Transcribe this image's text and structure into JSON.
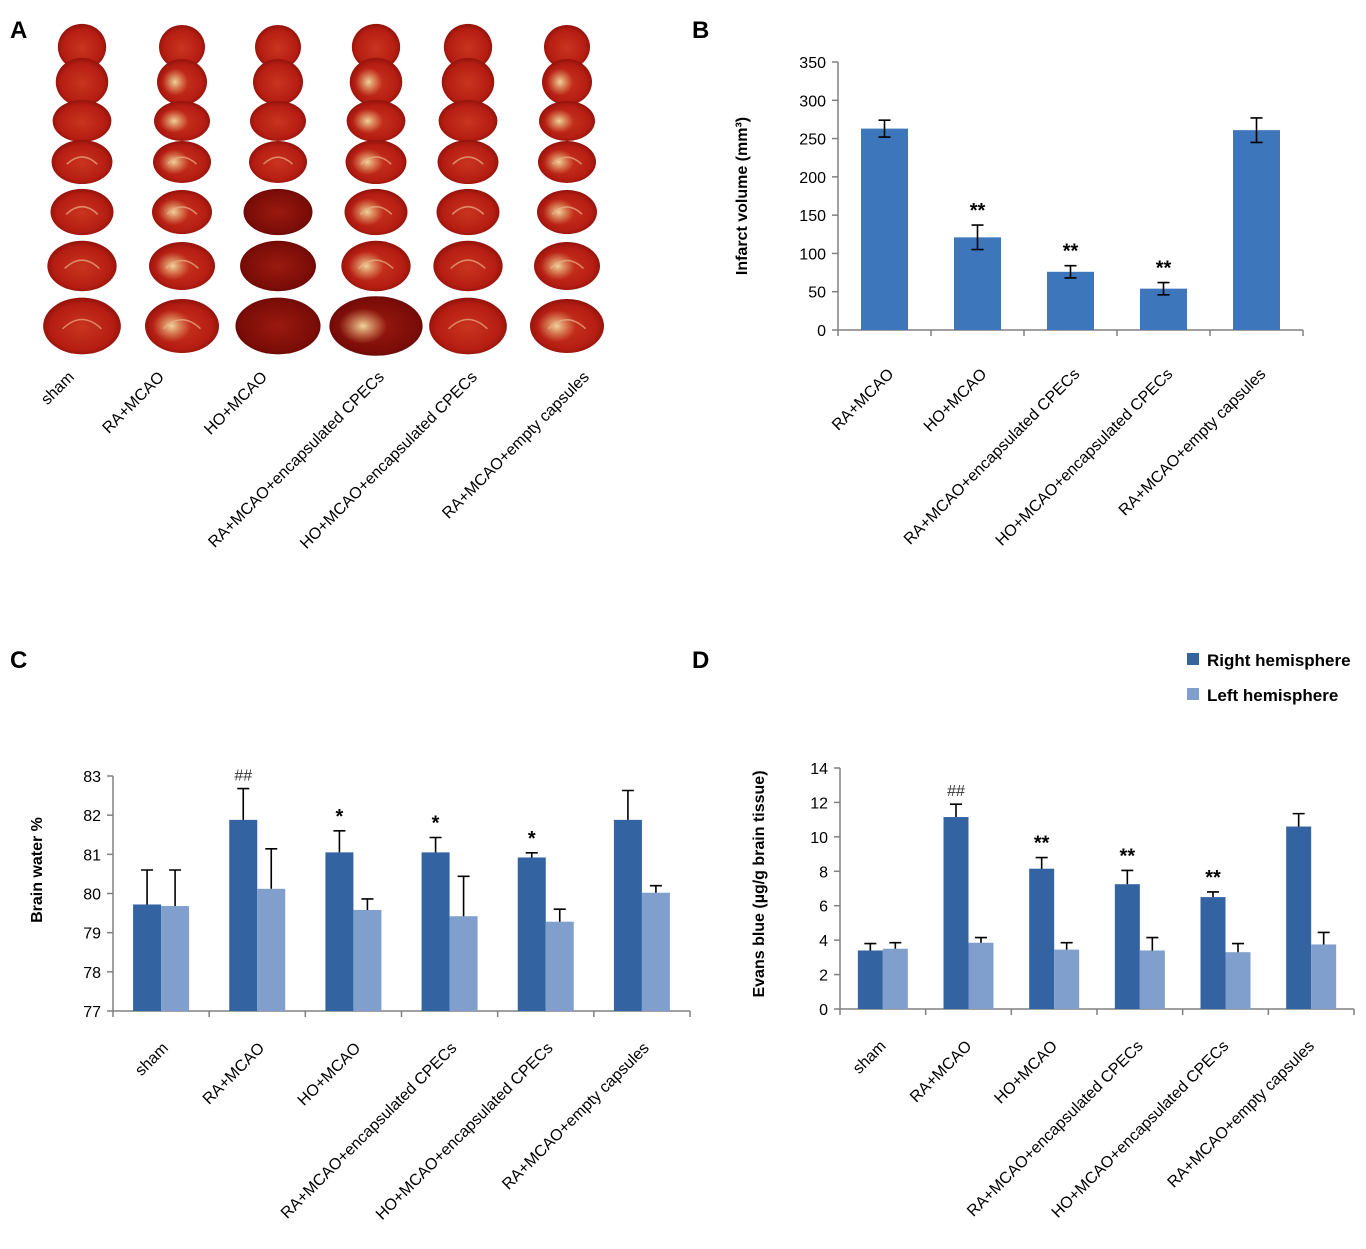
{
  "panels": {
    "a": {
      "letter": "A"
    },
    "b": {
      "letter": "B"
    },
    "c": {
      "letter": "C"
    },
    "d": {
      "letter": "D"
    }
  },
  "slice_labels": [
    "sham",
    "RA+MCAO",
    "HO+MCAO",
    "RA+MCAO+encapsulated CPECs",
    "HO+MCAO+encapsulated CPECs",
    "RA+MCAO+empty capsules"
  ],
  "colors": {
    "panel_b_bar": "#3d76bb",
    "right_hemisphere": "#3463a1",
    "left_hemisphere": "#809fcd",
    "slice_tissue": "#b51d12",
    "slice_dark": "#6e0a08",
    "slice_pale": "#e2a66f"
  },
  "chart_data": [
    {
      "panel": "B",
      "type": "bar",
      "categories": [
        "RA+MCAO",
        "HO+MCAO",
        "RA+MCAO+encapsulated CPECs",
        "HO+MCAO+encapsulated CPECs",
        "RA+MCAO+empty capsules"
      ],
      "series": [
        {
          "values": [
            263,
            121,
            76,
            54,
            261
          ],
          "errors": [
            11,
            16,
            8,
            8,
            16
          ]
        }
      ],
      "annotations": [
        "",
        "**",
        "**",
        "**",
        ""
      ],
      "ylabel": "Infarct volume (mm³)",
      "ylim": [
        0,
        350
      ],
      "yticks": [
        0,
        50,
        100,
        150,
        200,
        250,
        300,
        350
      ],
      "grid": false,
      "legend": "none"
    },
    {
      "panel": "C",
      "type": "bar",
      "categories": [
        "sham",
        "RA+MCAO",
        "HO+MCAO",
        "RA+MCAO+encapsulated CPECs",
        "HO+MCAO+encapsulated CPECs",
        "RA+MCAO+empty capsules"
      ],
      "series": [
        {
          "values": [
            79.72,
            81.88,
            81.05,
            81.05,
            80.92,
            81.88
          ],
          "errors": [
            0.88,
            0.8,
            0.55,
            0.38,
            0.12,
            0.75
          ]
        },
        {
          "values": [
            79.68,
            80.12,
            79.58,
            79.42,
            79.28,
            80.02
          ],
          "errors": [
            0.92,
            1.02,
            0.28,
            1.02,
            0.32,
            0.18
          ]
        }
      ],
      "annotations": [
        "",
        "##",
        "*",
        "*",
        "*",
        ""
      ],
      "ylabel": "Brain water %",
      "ylim": [
        77,
        83
      ],
      "yticks": [
        77,
        78,
        79,
        80,
        81,
        82,
        83
      ],
      "grid": false,
      "legend": "none"
    },
    {
      "panel": "D",
      "type": "bar",
      "categories": [
        "sham",
        "RA+MCAO",
        "HO+MCAO",
        "RA+MCAO+encapsulated CPECs",
        "HO+MCAO+encapsulated CPECs",
        "RA+MCAO+empty capsules"
      ],
      "series": [
        {
          "name": "Right hemisphere",
          "values": [
            3.4,
            11.15,
            8.15,
            7.25,
            6.5,
            10.6
          ],
          "errors": [
            0.4,
            0.75,
            0.65,
            0.8,
            0.3,
            0.75
          ]
        },
        {
          "name": "Left hemisphere",
          "values": [
            3.5,
            3.85,
            3.45,
            3.4,
            3.3,
            3.75
          ],
          "errors": [
            0.35,
            0.3,
            0.4,
            0.75,
            0.5,
            0.7
          ]
        }
      ],
      "annotations": [
        "",
        "##",
        "**",
        "**",
        "**",
        ""
      ],
      "ylabel": "Evans blue (µg/g brain tissue)",
      "ylim": [
        0,
        14
      ],
      "yticks": [
        0,
        2,
        4,
        6,
        8,
        10,
        12,
        14
      ],
      "grid": false,
      "legend": "top-right"
    }
  ]
}
